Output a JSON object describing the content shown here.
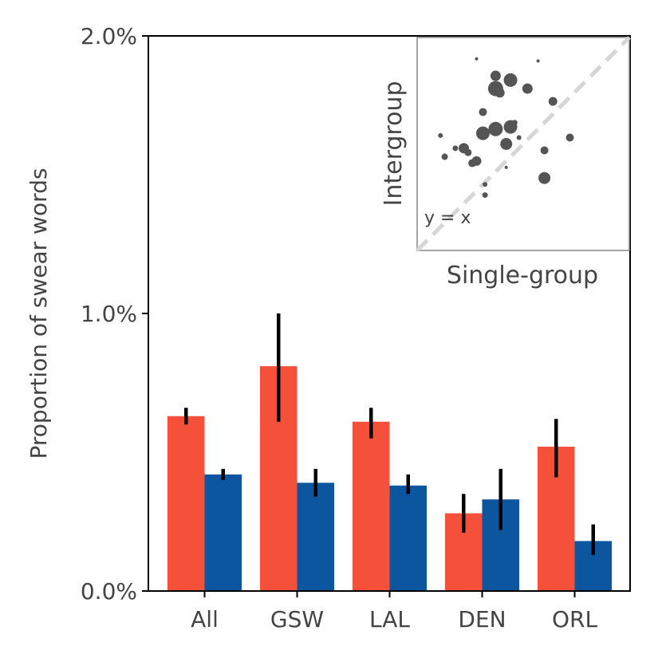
{
  "chart_data": [
    {
      "type": "bar",
      "title": "",
      "xlabel": "",
      "ylabel": "Proportion of swear words",
      "ylim": [
        0,
        2.0
      ],
      "yticks": [
        {
          "value": 0.0,
          "label": "0.0%"
        },
        {
          "value": 1.0,
          "label": "1.0%"
        },
        {
          "value": 2.0,
          "label": "2.0%"
        }
      ],
      "categories": [
        "All",
        "GSW",
        "LAL",
        "DEN",
        "ORL"
      ],
      "series": [
        {
          "name": "Single-group",
          "color": "#f4503a",
          "values": [
            0.63,
            0.81,
            0.61,
            0.28,
            0.52
          ],
          "err_low": [
            0.6,
            0.61,
            0.55,
            0.21,
            0.41
          ],
          "err_high": [
            0.66,
            1.0,
            0.66,
            0.35,
            0.62
          ]
        },
        {
          "name": "Intergroup",
          "color": "#0c56a0",
          "values": [
            0.42,
            0.39,
            0.38,
            0.33,
            0.18
          ],
          "err_low": [
            0.4,
            0.34,
            0.35,
            0.22,
            0.13
          ],
          "err_high": [
            0.44,
            0.44,
            0.42,
            0.44,
            0.24
          ]
        }
      ]
    },
    {
      "type": "scatter",
      "xlabel": "Single-group",
      "ylabel": "Intergroup",
      "annotation": "y = x",
      "xlim": [
        0,
        1
      ],
      "ylim": [
        0,
        1
      ],
      "diagonal": "y = x",
      "points": [
        {
          "x": 0.28,
          "y": 0.9,
          "size": 2.0
        },
        {
          "x": 0.57,
          "y": 0.89,
          "size": 2.0
        },
        {
          "x": 0.37,
          "y": 0.82,
          "size": 6.5
        },
        {
          "x": 0.44,
          "y": 0.8,
          "size": 8.5
        },
        {
          "x": 0.37,
          "y": 0.76,
          "size": 9.5
        },
        {
          "x": 0.39,
          "y": 0.74,
          "size": 6.0
        },
        {
          "x": 0.52,
          "y": 0.76,
          "size": 6.5
        },
        {
          "x": 0.64,
          "y": 0.7,
          "size": 5.5
        },
        {
          "x": 0.31,
          "y": 0.65,
          "size": 5.0
        },
        {
          "x": 0.44,
          "y": 0.58,
          "size": 8.5
        },
        {
          "x": 0.37,
          "y": 0.57,
          "size": 9.0
        },
        {
          "x": 0.31,
          "y": 0.55,
          "size": 8.5
        },
        {
          "x": 0.46,
          "y": 0.6,
          "size": 3.5
        },
        {
          "x": 0.48,
          "y": 0.53,
          "size": 3.0
        },
        {
          "x": 0.42,
          "y": 0.5,
          "size": 7.5
        },
        {
          "x": 0.11,
          "y": 0.54,
          "size": 3.0
        },
        {
          "x": 0.18,
          "y": 0.48,
          "size": 3.5
        },
        {
          "x": 0.22,
          "y": 0.48,
          "size": 6.5
        },
        {
          "x": 0.24,
          "y": 0.46,
          "size": 4.5
        },
        {
          "x": 0.13,
          "y": 0.44,
          "size": 4.0
        },
        {
          "x": 0.28,
          "y": 0.42,
          "size": 6.0
        },
        {
          "x": 0.26,
          "y": 0.41,
          "size": 5.0
        },
        {
          "x": 0.42,
          "y": 0.39,
          "size": 2.0
        },
        {
          "x": 0.6,
          "y": 0.47,
          "size": 5.0
        },
        {
          "x": 0.72,
          "y": 0.53,
          "size": 5.0
        },
        {
          "x": 0.6,
          "y": 0.34,
          "size": 7.5
        },
        {
          "x": 0.32,
          "y": 0.31,
          "size": 3.0
        },
        {
          "x": 0.32,
          "y": 0.26,
          "size": 3.5
        }
      ]
    }
  ]
}
